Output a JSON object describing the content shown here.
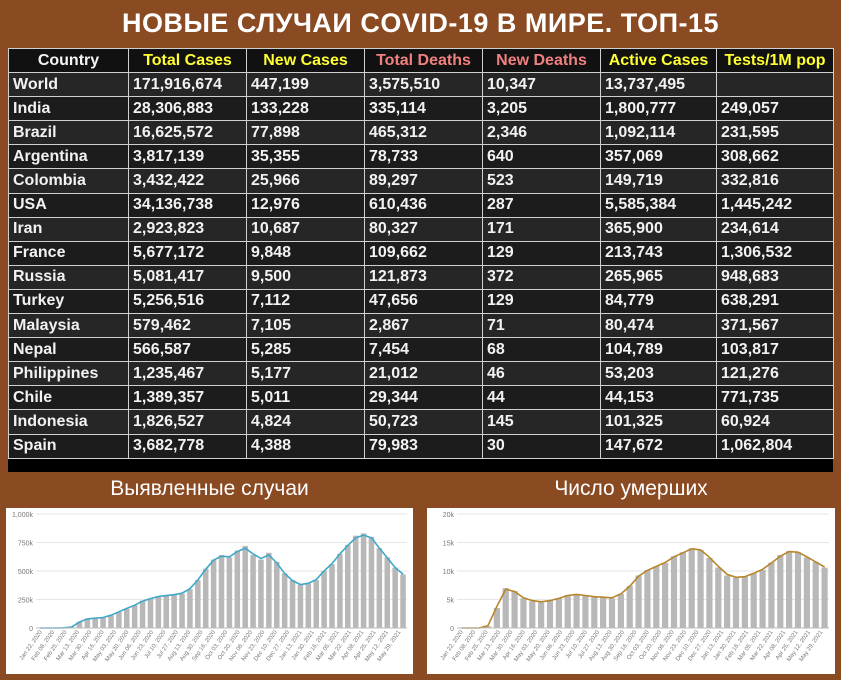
{
  "title": "НОВЫЕ СЛУЧАИ COVID-19 В МИРЕ. ТОП-15",
  "table": {
    "headers": [
      "Country",
      "Total Cases",
      "New Cases",
      "Total Deaths",
      "New Deaths",
      "Active Cases",
      "Tests/1M pop"
    ],
    "header_colors": [
      "#f5f5f5",
      "#ffff33",
      "#ffff33",
      "#f08080",
      "#f08080",
      "#ffff33",
      "#ffff33"
    ],
    "rows": [
      [
        "World",
        "171,916,674",
        "447,199",
        "3,575,510",
        "10,347",
        "13,737,495",
        ""
      ],
      [
        "India",
        "28,306,883",
        "133,228",
        "335,114",
        "3,205",
        "1,800,777",
        "249,057"
      ],
      [
        "Brazil",
        "16,625,572",
        "77,898",
        "465,312",
        "2,346",
        "1,092,114",
        "231,595"
      ],
      [
        "Argentina",
        "3,817,139",
        "35,355",
        "78,733",
        "640",
        "357,069",
        "308,662"
      ],
      [
        "Colombia",
        "3,432,422",
        "25,966",
        "89,297",
        "523",
        "149,719",
        "332,816"
      ],
      [
        "USA",
        "34,136,738",
        "12,976",
        "610,436",
        "287",
        "5,585,384",
        "1,445,242"
      ],
      [
        "Iran",
        "2,923,823",
        "10,687",
        "80,327",
        "171",
        "365,900",
        "234,614"
      ],
      [
        "France",
        "5,677,172",
        "9,848",
        "109,662",
        "129",
        "213,743",
        "1,306,532"
      ],
      [
        "Russia",
        "5,081,417",
        "9,500",
        "121,873",
        "372",
        "265,965",
        "948,683"
      ],
      [
        "Turkey",
        "5,256,516",
        "7,112",
        "47,656",
        "129",
        "84,779",
        "638,291"
      ],
      [
        "Malaysia",
        "579,462",
        "7,105",
        "2,867",
        "71",
        "80,474",
        "371,567"
      ],
      [
        "Nepal",
        "566,587",
        "5,285",
        "7,454",
        "68",
        "104,789",
        "103,817"
      ],
      [
        "Philippines",
        "1,235,467",
        "5,177",
        "21,012",
        "46",
        "53,203",
        "121,276"
      ],
      [
        "Chile",
        "1,389,357",
        "5,011",
        "29,344",
        "44",
        "44,153",
        "771,735"
      ],
      [
        "Indonesia",
        "1,826,527",
        "4,824",
        "50,723",
        "145",
        "101,325",
        "60,924"
      ],
      [
        "Spain",
        "3,682,778",
        "4,388",
        "79,983",
        "30",
        "147,672",
        "1,062,804"
      ]
    ]
  },
  "chart_data": [
    {
      "type": "bar",
      "title": "Выявленные случаи",
      "yticks": [
        "0",
        "250k",
        "500k",
        "750k",
        "1,000k"
      ],
      "ylim": [
        0,
        1000000
      ],
      "xticks": [
        "Jan 22, 2020",
        "Feb 08, 2020",
        "Feb 25, 2020",
        "Mar 13, 2020",
        "Mar 30, 2020",
        "Apr 16, 2020",
        "May 03, 2020",
        "May 20, 2020",
        "Jun 06, 2020",
        "Jun 23, 2020",
        "Jul 10, 2020",
        "Jul 27, 2020",
        "Aug 13, 2020",
        "Aug 30, 2020",
        "Sep 16, 2020",
        "Oct 03, 2020",
        "Oct 20, 2020",
        "Nov 06, 2020",
        "Nov 23, 2020",
        "Dec 10, 2020",
        "Dec 27, 2020",
        "Jan 13, 2021",
        "Jan 30, 2021",
        "Feb 16, 2021",
        "Mar 05, 2021",
        "Mar 22, 2021",
        "Apr 08, 2021",
        "Apr 25, 2021",
        "May 12, 2021",
        "May 29, 2021"
      ],
      "bar_color": "#b8b8b8",
      "line_color": "#3fa8c8",
      "values": [
        0,
        0,
        0,
        2000,
        8000,
        55000,
        82000,
        85000,
        90000,
        110000,
        140000,
        170000,
        200000,
        240000,
        260000,
        280000,
        285000,
        290000,
        300000,
        340000,
        420000,
        520000,
        600000,
        640000,
        620000,
        680000,
        720000,
        640000,
        600000,
        660000,
        580000,
        480000,
        420000,
        380000,
        390000,
        420000,
        500000,
        560000,
        650000,
        730000,
        810000,
        830000,
        800000,
        700000,
        620000,
        530000,
        470000
      ],
      "trend": [
        0,
        0,
        0,
        2000,
        8000,
        52000,
        80000,
        86000,
        92000,
        112000,
        142000,
        172000,
        200000,
        236000,
        258000,
        276000,
        284000,
        292000,
        305000,
        345000,
        420000,
        515000,
        595000,
        630000,
        625000,
        670000,
        700000,
        650000,
        610000,
        640000,
        570000,
        480000,
        415000,
        382000,
        392000,
        425000,
        500000,
        565000,
        650000,
        725000,
        790000,
        815000,
        790000,
        700000,
        615000,
        530000,
        472000
      ]
    },
    {
      "type": "bar",
      "title": "Число умерших",
      "yticks": [
        "0",
        "5k",
        "10k",
        "15k",
        "20k"
      ],
      "ylim": [
        0,
        20000
      ],
      "xticks": [
        "Jan 22, 2020",
        "Feb 08, 2020",
        "Feb 25, 2020",
        "Mar 13, 2020",
        "Mar 30, 2020",
        "Apr 16, 2020",
        "May 03, 2020",
        "May 20, 2020",
        "Jun 06, 2020",
        "Jun 23, 2020",
        "Jul 10, 2020",
        "Jul 27, 2020",
        "Aug 13, 2020",
        "Aug 30, 2020",
        "Sep 16, 2020",
        "Oct 03, 2020",
        "Oct 20, 2020",
        "Nov 06, 2020",
        "Nov 23, 2020",
        "Dec 10, 2020",
        "Dec 27, 2020",
        "Jan 13, 2021",
        "Jan 30, 2021",
        "Feb 16, 2021",
        "Mar 05, 2021",
        "Mar 22, 2021",
        "Apr 08, 2021",
        "Apr 25, 2021",
        "May 12, 2021",
        "May 29, 2021"
      ],
      "bar_color": "#b8b8b8",
      "line_color": "#b8862a",
      "values": [
        0,
        0,
        0,
        300,
        3500,
        7000,
        6500,
        5200,
        4700,
        4500,
        4800,
        5200,
        5800,
        5900,
        5700,
        5500,
        5400,
        5200,
        6000,
        7400,
        9200,
        10200,
        10800,
        11400,
        12600,
        13300,
        14000,
        13700,
        12300,
        10600,
        9200,
        8800,
        9000,
        9600,
        10200,
        11500,
        12800,
        13500,
        13300,
        12400,
        11600,
        10600
      ],
      "trend": [
        0,
        0,
        0,
        400,
        3800,
        6800,
        6400,
        5300,
        4800,
        4600,
        4800,
        5200,
        5700,
        5900,
        5700,
        5500,
        5400,
        5300,
        6000,
        7300,
        9100,
        10100,
        10800,
        11500,
        12500,
        13200,
        13900,
        13700,
        12400,
        10800,
        9400,
        8900,
        9000,
        9600,
        10300,
        11400,
        12600,
        13400,
        13300,
        12500,
        11600,
        10700
      ]
    }
  ]
}
